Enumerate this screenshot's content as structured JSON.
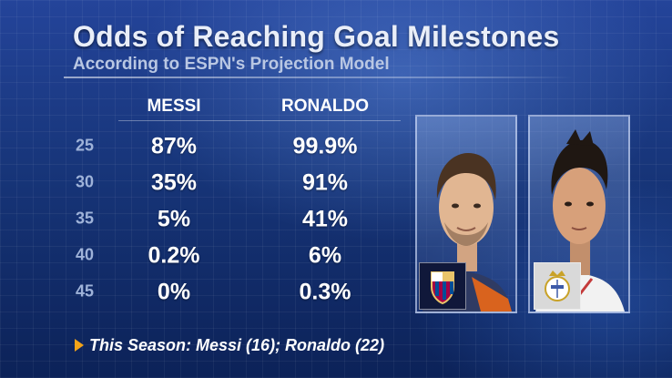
{
  "title": "Odds of Reaching Goal Milestones",
  "subtitle": "According to ESPN's Projection Model",
  "footnote": "This Season: Messi (16); Ronaldo (22)",
  "colors": {
    "accent": "#f3a318",
    "row_label": "#9fb3d9",
    "background": "#173579"
  },
  "chart_data": {
    "type": "table",
    "title": "Odds of Reaching Goal Milestones",
    "subtitle": "According to ESPN's Projection Model",
    "columns": [
      "MESSI",
      "RONALDO"
    ],
    "rows": [
      "25",
      "30",
      "35",
      "40",
      "45"
    ],
    "series": [
      {
        "name": "MESSI",
        "values": [
          "87%",
          "35%",
          "5%",
          "0.2%",
          "0%"
        ]
      },
      {
        "name": "RONALDO",
        "values": [
          "99.9%",
          "91%",
          "41%",
          "6%",
          "0.3%"
        ]
      }
    ]
  },
  "images": {
    "messi_photo": "player-photo-messi",
    "ronaldo_photo": "player-photo-ronaldo",
    "messi_badge": "fc-barcelona-crest-icon",
    "ronaldo_badge": "real-madrid-crest-icon"
  }
}
